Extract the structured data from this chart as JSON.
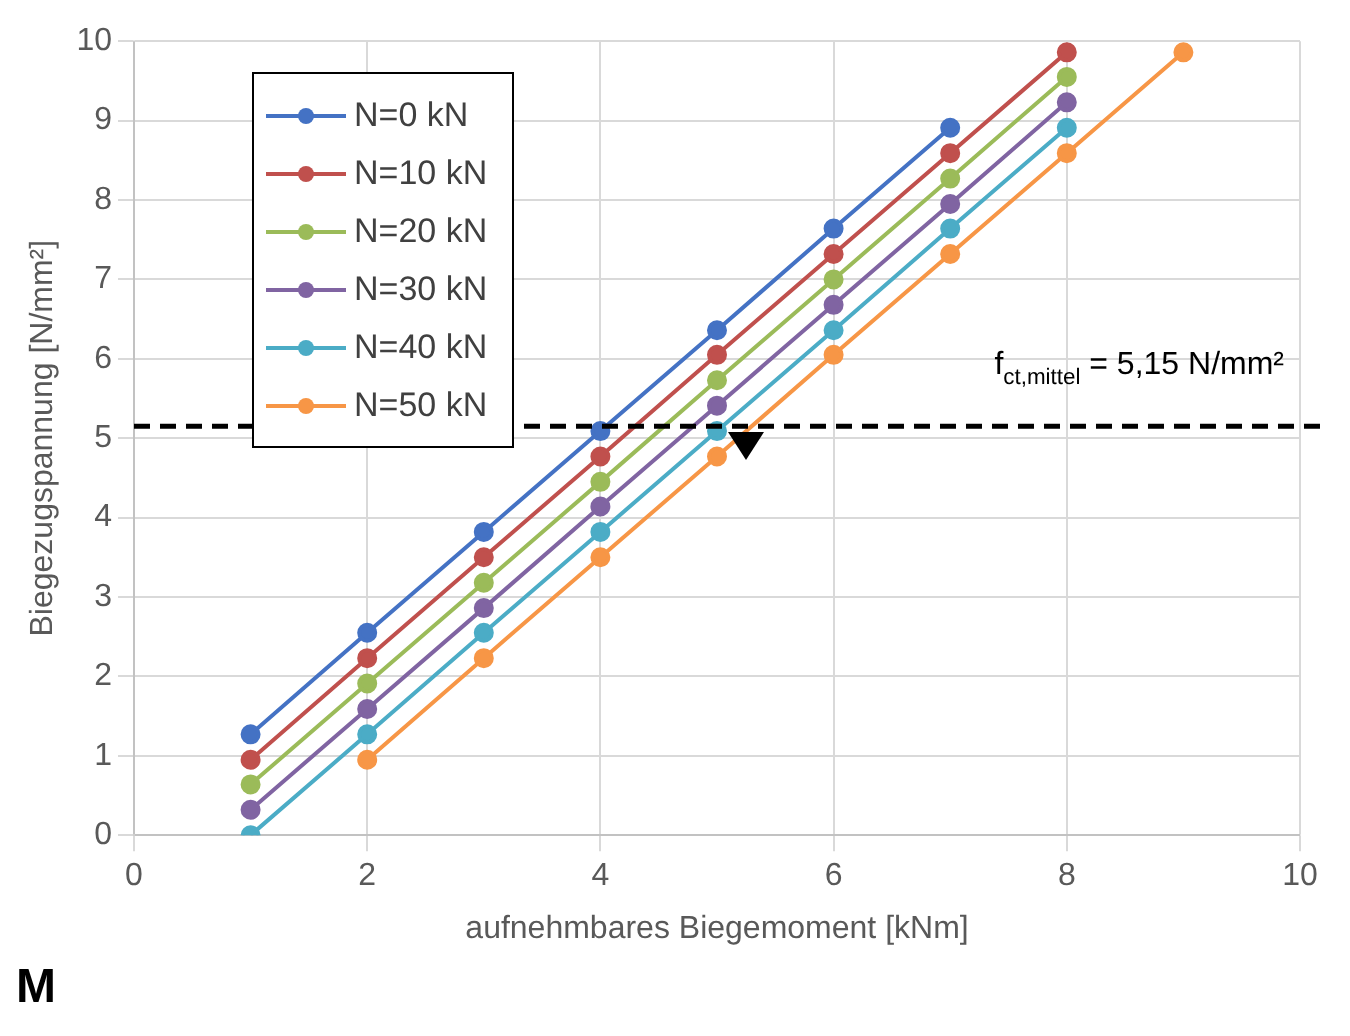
{
  "chart_data": {
    "type": "line",
    "xlabel": "aufnehmbares Biegemoment [kNm]",
    "ylabel": "Biegezugspannung [N/mm²]",
    "x": [
      1,
      2,
      3,
      4,
      5,
      6,
      7,
      8,
      9
    ],
    "series": [
      {
        "name": "N=0 kN",
        "color": "#4472c4",
        "values": [
          1.27,
          2.55,
          3.82,
          5.09,
          6.36,
          7.64,
          8.91,
          null,
          null
        ]
      },
      {
        "name": "N=10 kN",
        "color": "#c0504d",
        "values": [
          0.95,
          2.23,
          3.5,
          4.77,
          6.05,
          7.32,
          8.59,
          9.86,
          null
        ]
      },
      {
        "name": "N=20 kN",
        "color": "#9bbb59",
        "values": [
          0.64,
          1.91,
          3.18,
          4.45,
          5.73,
          7.0,
          8.27,
          9.55,
          null
        ]
      },
      {
        "name": "N=30 kN",
        "color": "#8064a2",
        "values": [
          0.32,
          1.59,
          2.86,
          4.14,
          5.41,
          6.68,
          7.95,
          9.23,
          null
        ]
      },
      {
        "name": "N=40 kN",
        "color": "#4bacc6",
        "values": [
          0,
          1.27,
          2.55,
          3.82,
          5.09,
          6.36,
          7.64,
          8.91,
          null
        ]
      },
      {
        "name": "N=50 kN",
        "color": "#f79646",
        "values": [
          null,
          0.95,
          2.23,
          3.5,
          4.77,
          6.05,
          7.32,
          8.59,
          9.86
        ]
      }
    ],
    "xlim": [
      0,
      10
    ],
    "xticks": [
      0,
      2,
      4,
      6,
      8,
      10
    ],
    "ylim": [
      0,
      10
    ],
    "yticks": [
      0,
      1,
      2,
      3,
      4,
      5,
      6,
      7,
      8,
      9,
      10
    ],
    "ref_lines": [
      {
        "axis": "y",
        "value": 5.15,
        "label": "f$_{ct,mittel}$ = 5,15 N/mm²",
        "color": "#000000",
        "line_style": "dashed"
      }
    ],
    "annotations": [
      "M"
    ],
    "grid": true,
    "legend": "top left",
    "marker": "circle",
    "line_style": "solid"
  }
}
